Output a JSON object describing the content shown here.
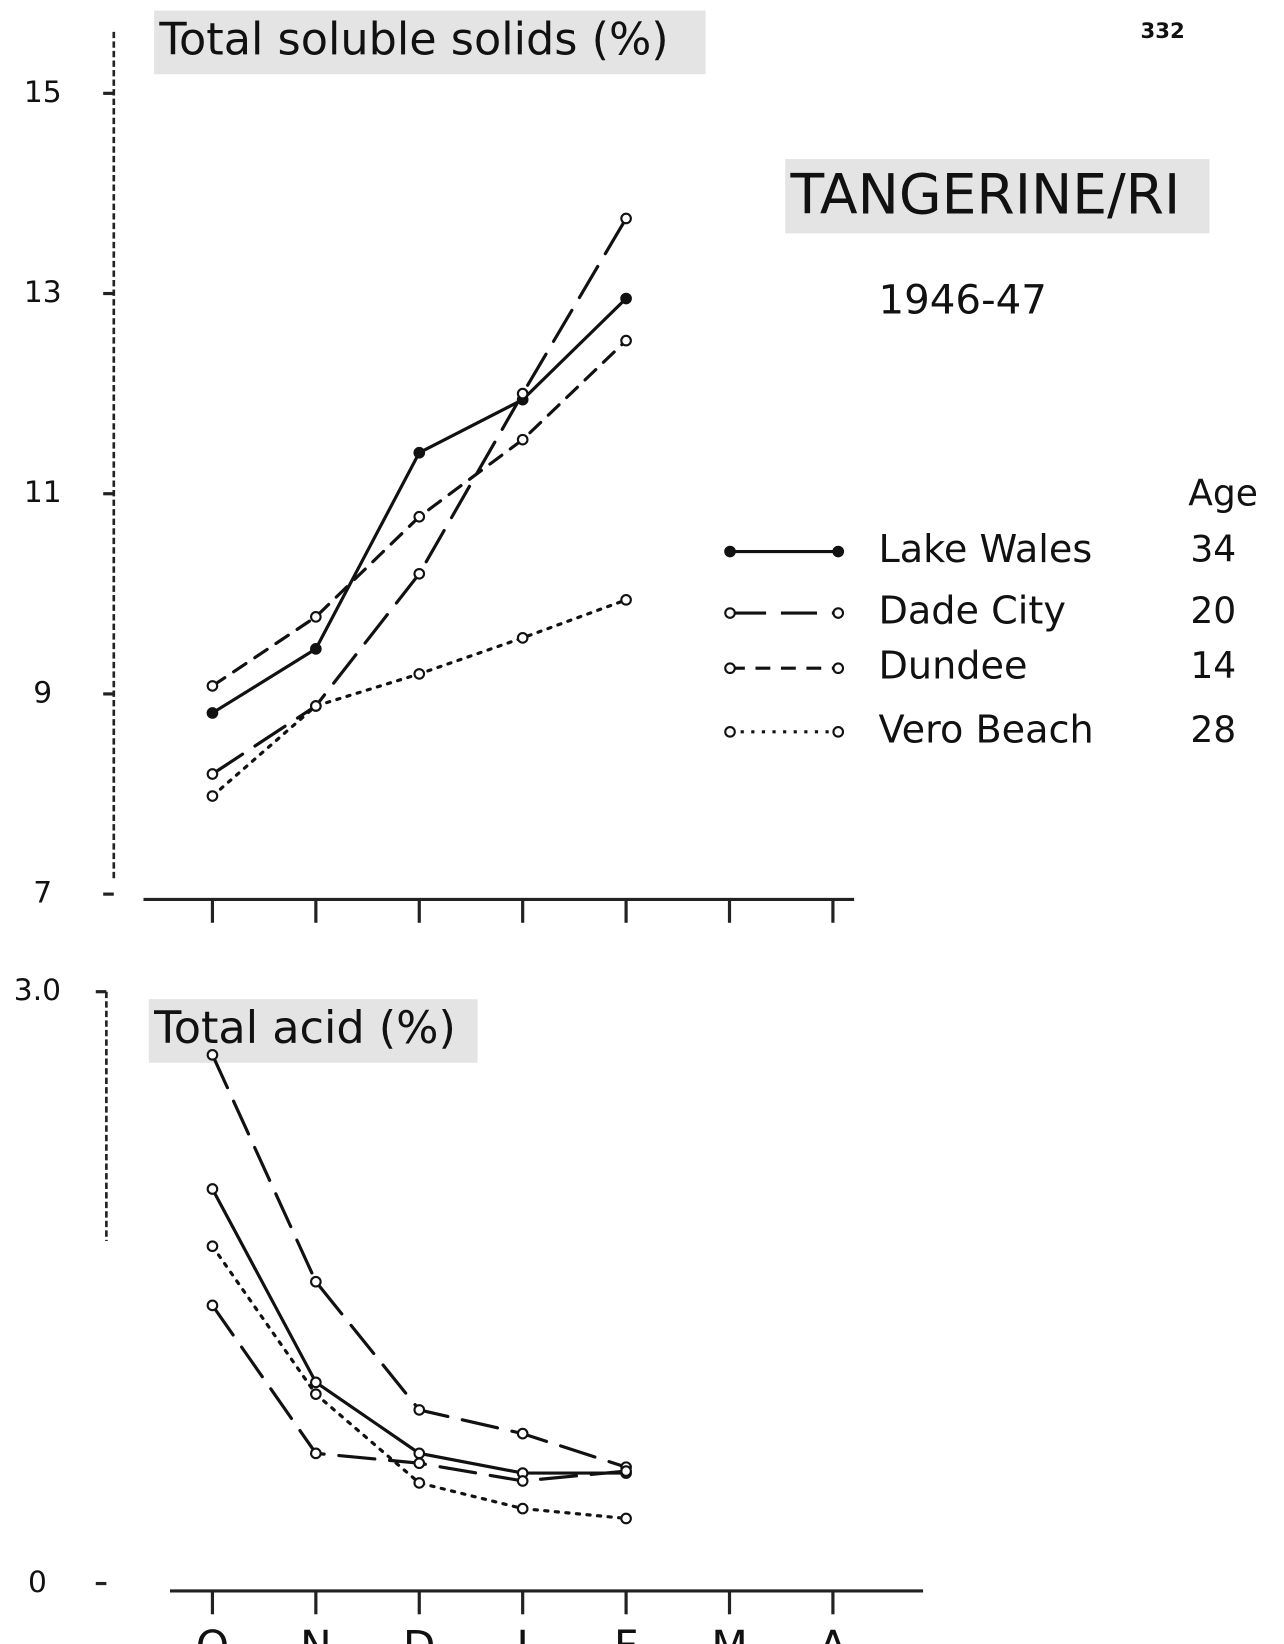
{
  "page_number": "332",
  "title": "TANGERINE/RI",
  "subtitle": "1946-47",
  "legend_header": "Age",
  "chart_data": [
    {
      "type": "line",
      "title": "Total soluble solids (%)",
      "categories": [
        null,
        null,
        null,
        null,
        null,
        null,
        null
      ],
      "ylim": [
        7,
        15
      ],
      "yticks": [
        7,
        9,
        11,
        13,
        15
      ],
      "series": [
        {
          "name": "Lake Wales",
          "age": 34,
          "color": "#111111",
          "dash": "solid",
          "marker": "filled",
          "values": [
            8.81,
            9.45,
            11.41,
            11.94,
            12.95,
            null,
            null
          ]
        },
        {
          "name": "Dade City",
          "age": 20,
          "color": "#111111",
          "dash": "long",
          "marker": "open",
          "values": [
            8.2,
            8.88,
            10.2,
            12.0,
            13.75,
            null,
            null
          ]
        },
        {
          "name": "Dundee",
          "age": 14,
          "color": "#111111",
          "dash": "short",
          "marker": "open",
          "values": [
            9.08,
            9.77,
            10.77,
            11.54,
            12.53,
            null,
            null
          ]
        },
        {
          "name": "Vero Beach",
          "age": 28,
          "color": "#111111",
          "dash": "dotted",
          "marker": "open",
          "values": [
            7.98,
            8.88,
            9.2,
            9.56,
            9.94,
            null,
            null
          ]
        }
      ]
    },
    {
      "type": "line",
      "title": "Total acid (%)",
      "categories": [
        "O",
        "N",
        "D",
        "J",
        "F",
        "M",
        "A"
      ],
      "ylim": [
        0,
        3
      ],
      "yticks": [
        0,
        {
          "value": 3,
          "label": "3.0"
        }
      ],
      "series": [
        {
          "color": "#111111",
          "dash": "solid",
          "marker": "open",
          "values": [
            2.0,
            1.02,
            0.66,
            0.56,
            0.56,
            null,
            null
          ]
        },
        {
          "color": "#111111",
          "dash": "long",
          "marker": "open",
          "values": [
            2.68,
            1.53,
            0.88,
            0.76,
            0.59,
            null,
            null
          ]
        },
        {
          "color": "#111111",
          "dash": "long",
          "marker": "open",
          "values": [
            1.41,
            0.66,
            0.61,
            0.52,
            0.57,
            null,
            null
          ]
        },
        {
          "color": "#111111",
          "dash": "dotted",
          "marker": "open",
          "values": [
            1.71,
            0.96,
            0.51,
            0.38,
            0.33,
            null,
            null
          ]
        }
      ]
    }
  ]
}
